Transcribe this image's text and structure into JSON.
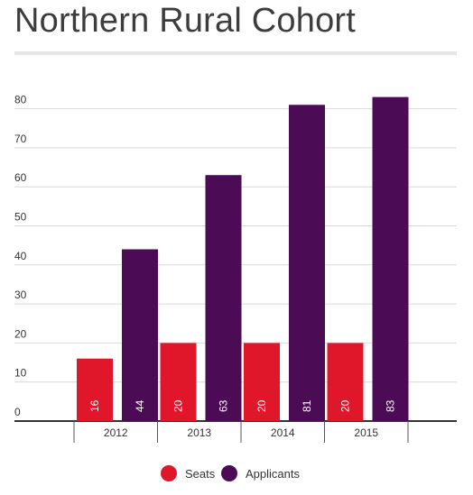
{
  "chart_data": {
    "type": "bar",
    "title": "Northern Rural Cohort",
    "categories": [
      "2012",
      "2013",
      "2014",
      "2015"
    ],
    "series": [
      {
        "name": "Seats",
        "color": "#e0162b",
        "values": [
          16,
          20,
          20,
          20
        ]
      },
      {
        "name": "Applicants",
        "color": "#4b0c55",
        "values": [
          44,
          63,
          81,
          83
        ]
      }
    ],
    "ylim": [
      0,
      85
    ],
    "yticks": [
      0,
      10,
      20,
      30,
      40,
      50,
      60,
      70,
      80
    ],
    "grid": true,
    "data_labels": "inside-bottom-vertical",
    "legend_position": "bottom-center"
  }
}
